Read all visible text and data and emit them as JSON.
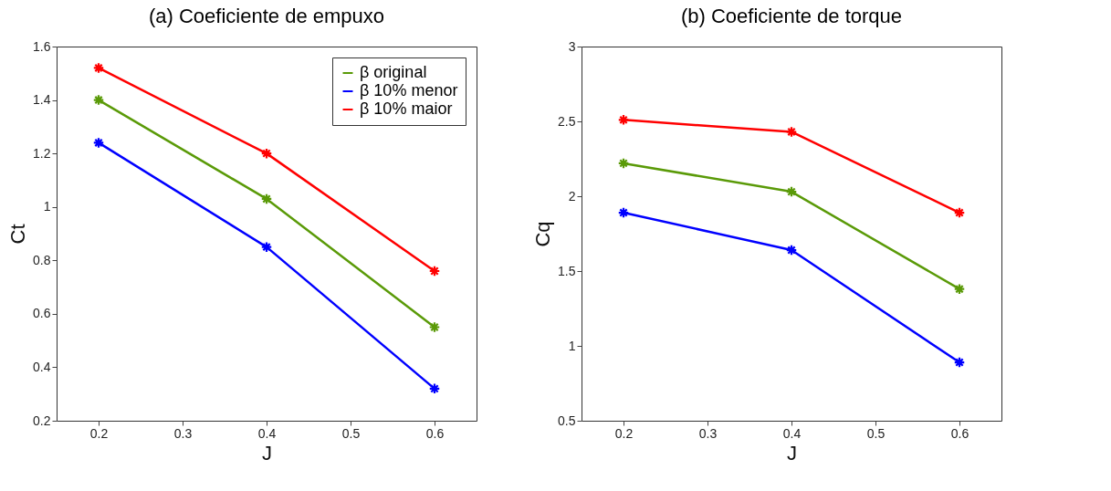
{
  "chart_data": [
    {
      "type": "line",
      "title": "(a) Coeficiente de empuxo",
      "xlabel": "J",
      "ylabel": "Ct",
      "x": [
        0.2,
        0.4,
        0.6
      ],
      "series": [
        {
          "name": "β original",
          "color": "#5a9a08",
          "values": [
            1.4,
            1.03,
            0.55
          ]
        },
        {
          "name": "β 10% menor",
          "color": "#0000ff",
          "values": [
            1.24,
            0.85,
            0.32
          ]
        },
        {
          "name": "β 10% maior",
          "color": "#ff0000",
          "values": [
            1.52,
            1.2,
            0.76
          ]
        }
      ],
      "xlim": [
        0.15,
        0.65
      ],
      "xticks": [
        0.2,
        0.3,
        0.4,
        0.5,
        0.6
      ],
      "ylim": [
        0.2,
        1.6
      ],
      "yticks": [
        0.2,
        0.4,
        0.6,
        0.8,
        1,
        1.2,
        1.4,
        1.6
      ],
      "grid": false,
      "legend": "top right",
      "marker": "cross",
      "line_style": "solid"
    },
    {
      "type": "line",
      "title": "(b) Coeficiente de torque",
      "xlabel": "J",
      "ylabel": "Cq",
      "x": [
        0.2,
        0.4,
        0.6
      ],
      "series": [
        {
          "color": "#5a9a08",
          "values": [
            2.22,
            2.03,
            1.38
          ]
        },
        {
          "color": "#0000ff",
          "values": [
            1.89,
            1.64,
            0.89
          ]
        },
        {
          "color": "#ff0000",
          "values": [
            2.51,
            2.43,
            1.89
          ]
        }
      ],
      "xlim": [
        0.15,
        0.65
      ],
      "xticks": [
        0.2,
        0.3,
        0.4,
        0.5,
        0.6
      ],
      "ylim": [
        0.5,
        3
      ],
      "yticks": [
        0.5,
        1,
        1.5,
        2,
        2.5,
        3
      ],
      "grid": false,
      "legend": false,
      "marker": "cross",
      "line_style": "solid"
    }
  ]
}
